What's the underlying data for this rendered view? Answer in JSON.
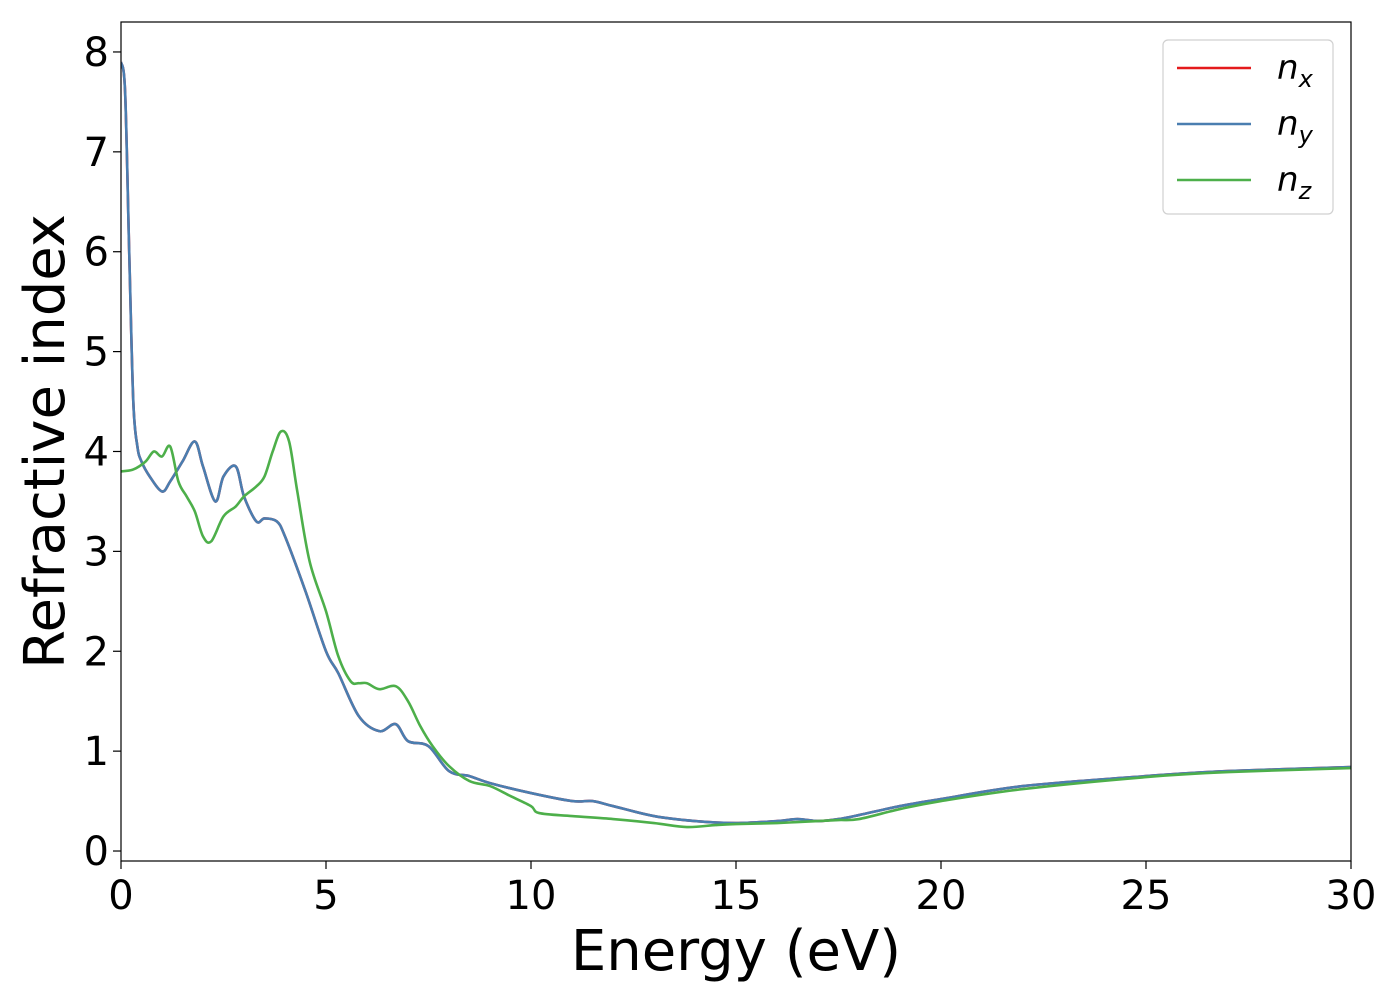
{
  "chart_data": {
    "type": "line",
    "title": "",
    "xlabel": "Energy (eV)",
    "ylabel": "Refractive index",
    "xlim": [
      0,
      30
    ],
    "ylim": [
      -0.1,
      8.3
    ],
    "xticks": [
      0,
      5,
      10,
      15,
      20,
      25,
      30
    ],
    "xtick_labels": [
      "0",
      "5",
      "10",
      "15",
      "20",
      "25",
      "30"
    ],
    "yticks": [
      0,
      1,
      2,
      3,
      4,
      5,
      6,
      7,
      8
    ],
    "ytick_labels": [
      "0",
      "1",
      "2",
      "3",
      "4",
      "5",
      "6",
      "7",
      "8"
    ],
    "grid": false,
    "legend_position": "top-right",
    "series": [
      {
        "name": "n_x",
        "base": "n",
        "sub": "x",
        "color": "#e41a1c",
        "x": [
          0,
          0.1,
          0.2,
          0.3,
          0.4,
          0.5,
          0.7,
          1.0,
          1.2,
          1.5,
          1.8,
          2.0,
          2.3,
          2.5,
          2.8,
          3.0,
          3.3,
          3.5,
          3.8,
          4.0,
          4.5,
          5.0,
          5.3,
          5.8,
          6.3,
          6.7,
          7.0,
          7.5,
          8.0,
          8.5,
          9.0,
          10.0,
          11.0,
          11.5,
          12.0,
          13.0,
          14.0,
          15.0,
          16.0,
          16.5,
          17.0,
          17.5,
          18.0,
          19.0,
          20.0,
          22.0,
          25.0,
          27.0,
          30.0
        ],
        "values": [
          7.9,
          7.6,
          6.0,
          4.5,
          4.05,
          3.9,
          3.75,
          3.6,
          3.7,
          3.9,
          4.1,
          3.85,
          3.5,
          3.75,
          3.85,
          3.55,
          3.3,
          3.33,
          3.3,
          3.15,
          2.6,
          2.0,
          1.78,
          1.35,
          1.2,
          1.27,
          1.1,
          1.05,
          0.8,
          0.75,
          0.68,
          0.58,
          0.5,
          0.5,
          0.45,
          0.35,
          0.3,
          0.28,
          0.3,
          0.32,
          0.3,
          0.32,
          0.36,
          0.45,
          0.52,
          0.65,
          0.75,
          0.8,
          0.84
        ]
      },
      {
        "name": "n_y",
        "base": "n",
        "sub": "y",
        "color": "#4a7eb0",
        "x": [
          0,
          0.1,
          0.2,
          0.3,
          0.4,
          0.5,
          0.7,
          1.0,
          1.2,
          1.5,
          1.8,
          2.0,
          2.3,
          2.5,
          2.8,
          3.0,
          3.3,
          3.5,
          3.8,
          4.0,
          4.5,
          5.0,
          5.3,
          5.8,
          6.3,
          6.7,
          7.0,
          7.5,
          8.0,
          8.5,
          9.0,
          10.0,
          11.0,
          11.5,
          12.0,
          13.0,
          14.0,
          15.0,
          16.0,
          16.5,
          17.0,
          17.5,
          18.0,
          19.0,
          20.0,
          22.0,
          25.0,
          27.0,
          30.0
        ],
        "values": [
          7.9,
          7.6,
          6.0,
          4.5,
          4.05,
          3.9,
          3.75,
          3.6,
          3.7,
          3.9,
          4.1,
          3.85,
          3.5,
          3.75,
          3.85,
          3.55,
          3.3,
          3.33,
          3.3,
          3.15,
          2.6,
          2.0,
          1.78,
          1.35,
          1.2,
          1.27,
          1.1,
          1.05,
          0.8,
          0.75,
          0.68,
          0.58,
          0.5,
          0.5,
          0.45,
          0.35,
          0.3,
          0.28,
          0.3,
          0.32,
          0.3,
          0.32,
          0.36,
          0.45,
          0.52,
          0.65,
          0.75,
          0.8,
          0.84
        ]
      },
      {
        "name": "n_z",
        "base": "n",
        "sub": "z",
        "color": "#4daf4a",
        "x": [
          0,
          0.3,
          0.6,
          0.8,
          1.0,
          1.2,
          1.4,
          1.6,
          1.8,
          2.0,
          2.2,
          2.5,
          2.8,
          3.0,
          3.3,
          3.5,
          3.7,
          3.9,
          4.1,
          4.3,
          4.6,
          5.0,
          5.3,
          5.6,
          5.8,
          6.0,
          6.3,
          6.7,
          7.0,
          7.3,
          7.6,
          8.0,
          8.5,
          9.0,
          9.5,
          10.0,
          10.2,
          11.0,
          12.0,
          13.0,
          13.8,
          14.5,
          15.0,
          16.0,
          16.5,
          17.0,
          17.5,
          18.0,
          19.0,
          20.0,
          22.0,
          25.0,
          27.0,
          30.0
        ],
        "values": [
          3.8,
          3.82,
          3.9,
          4.0,
          3.95,
          4.05,
          3.7,
          3.55,
          3.4,
          3.15,
          3.1,
          3.35,
          3.45,
          3.55,
          3.65,
          3.75,
          4.0,
          4.2,
          4.1,
          3.6,
          2.9,
          2.4,
          1.95,
          1.7,
          1.68,
          1.68,
          1.62,
          1.65,
          1.5,
          1.25,
          1.05,
          0.85,
          0.7,
          0.65,
          0.55,
          0.45,
          0.38,
          0.35,
          0.32,
          0.28,
          0.24,
          0.26,
          0.27,
          0.28,
          0.29,
          0.3,
          0.31,
          0.32,
          0.42,
          0.5,
          0.62,
          0.74,
          0.79,
          0.83
        ]
      }
    ]
  }
}
